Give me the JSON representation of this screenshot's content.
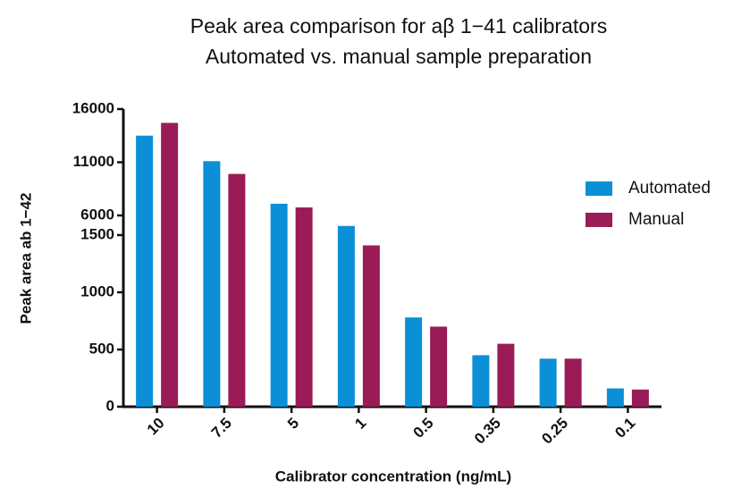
{
  "chart_data": {
    "type": "bar",
    "title": [
      "Peak area comparison for aβ 1−41 calibrators",
      "Automated vs. manual sample preparation"
    ],
    "x_label": "Calibrator concentration (ng/mL)",
    "y_label": "Peak area ab 1−42",
    "categories": [
      "10",
      "7.5",
      "5",
      "1",
      "0.5",
      "0.35",
      "0.25",
      "0.1"
    ],
    "series": [
      {
        "name": "Automated",
        "color": "#0b8fd7",
        "values": [
          13500,
          11100,
          7100,
          1580,
          780,
          450,
          420,
          160
        ]
      },
      {
        "name": "Manual",
        "color": "#9a1b55",
        "values": [
          14700,
          9900,
          6750,
          1410,
          700,
          550,
          420,
          150
        ]
      }
    ],
    "ylim": [
      0,
      16000
    ],
    "y_break": [
      1500,
      6000
    ],
    "yticks": [
      0,
      500,
      1000,
      1500,
      6000,
      11000,
      16000
    ],
    "legend": "right"
  }
}
